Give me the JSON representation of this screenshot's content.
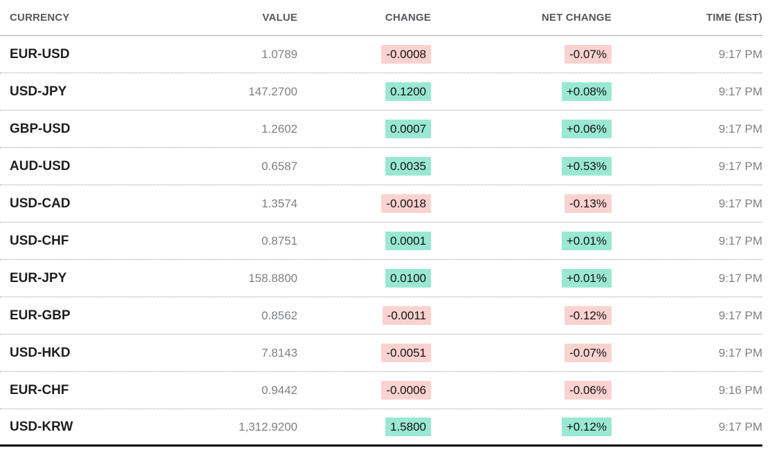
{
  "table": {
    "columns": [
      {
        "key": "currency",
        "label": "CURRENCY"
      },
      {
        "key": "value",
        "label": "VALUE"
      },
      {
        "key": "change",
        "label": "CHANGE"
      },
      {
        "key": "net_change",
        "label": "NET CHANGE"
      },
      {
        "key": "time",
        "label": "TIME (EST)"
      }
    ],
    "rows": [
      {
        "currency": "EUR-USD",
        "value": "1.0789",
        "change": "-0.0008",
        "net_change": "-0.07%",
        "direction": "down",
        "time": "9:17 PM"
      },
      {
        "currency": "USD-JPY",
        "value": "147.2700",
        "change": "0.1200",
        "net_change": "+0.08%",
        "direction": "up",
        "time": "9:17 PM"
      },
      {
        "currency": "GBP-USD",
        "value": "1.2602",
        "change": "0.0007",
        "net_change": "+0.06%",
        "direction": "up",
        "time": "9:17 PM"
      },
      {
        "currency": "AUD-USD",
        "value": "0.6587",
        "change": "0.0035",
        "net_change": "+0.53%",
        "direction": "up",
        "time": "9:17 PM"
      },
      {
        "currency": "USD-CAD",
        "value": "1.3574",
        "change": "-0.0018",
        "net_change": "-0.13%",
        "direction": "down",
        "time": "9:17 PM"
      },
      {
        "currency": "USD-CHF",
        "value": "0.8751",
        "change": "0.0001",
        "net_change": "+0.01%",
        "direction": "up",
        "time": "9:17 PM"
      },
      {
        "currency": "EUR-JPY",
        "value": "158.8800",
        "change": "0.0100",
        "net_change": "+0.01%",
        "direction": "up",
        "time": "9:17 PM"
      },
      {
        "currency": "EUR-GBP",
        "value": "0.8562",
        "change": "-0.0011",
        "net_change": "-0.12%",
        "direction": "down",
        "time": "9:17 PM"
      },
      {
        "currency": "USD-HKD",
        "value": "7.8143",
        "change": "-0.0051",
        "net_change": "-0.07%",
        "direction": "down",
        "time": "9:17 PM"
      },
      {
        "currency": "EUR-CHF",
        "value": "0.9442",
        "change": "-0.0006",
        "net_change": "-0.06%",
        "direction": "down",
        "time": "9:16 PM"
      },
      {
        "currency": "USD-KRW",
        "value": "1,312.9200",
        "change": "1.5800",
        "net_change": "+0.12%",
        "direction": "up",
        "time": "9:17 PM"
      }
    ]
  },
  "colors": {
    "positive_bg": "#9ae8d3",
    "negative_bg": "#fad2cf",
    "header_text": "#55575b",
    "currency_text": "#1c1d1f",
    "muted_text": "#7e8083"
  }
}
